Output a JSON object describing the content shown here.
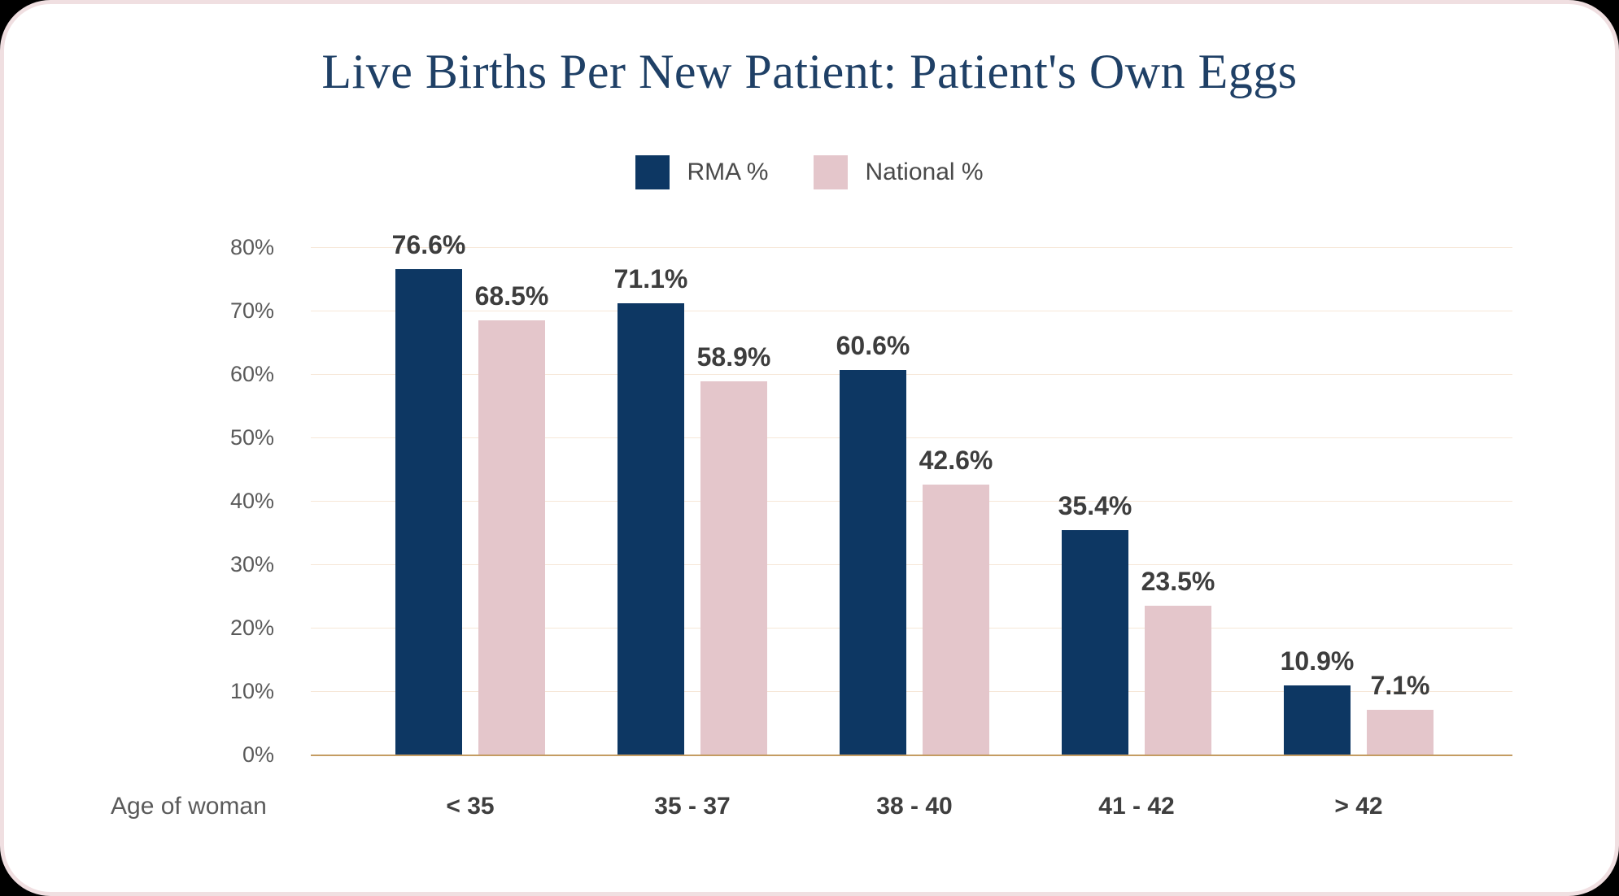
{
  "title": "Live Births Per New Patient: Patient's Own Eggs",
  "x_axis_label": "Age of woman",
  "legend": [
    {
      "label": "RMA %",
      "color": "#0d3763"
    },
    {
      "label": "National %",
      "color": "#e4c6cb"
    }
  ],
  "chart_data": {
    "type": "bar",
    "title": "Live Births Per New Patient: Patient's Own Eggs",
    "categories": [
      "< 35",
      "35 - 37",
      "38 - 40",
      "41 - 42",
      "> 42"
    ],
    "series": [
      {
        "name": "RMA %",
        "color": "#0d3763",
        "values": [
          76.6,
          71.1,
          60.6,
          35.4,
          10.9
        ]
      },
      {
        "name": "National %",
        "color": "#e4c6cb",
        "values": [
          68.5,
          58.9,
          42.6,
          23.5,
          7.1
        ]
      }
    ],
    "value_labels": [
      [
        "76.6%",
        "71.1%",
        "60.6%",
        "35.4%",
        "10.9%"
      ],
      [
        "68.5%",
        "58.9%",
        "42.6%",
        "23.5%",
        "7.1%"
      ]
    ],
    "xlabel": "Age of woman",
    "ylabel": "",
    "ylim": [
      0,
      80
    ],
    "yticks": [
      "0%",
      "10%",
      "20%",
      "30%",
      "40%",
      "50%",
      "60%",
      "70%",
      "80%"
    ],
    "grid": true,
    "legend_position": "top-center",
    "colors": {
      "gridline": "#f6e7d7",
      "axis_line": "#c49c62",
      "value_label": "#3d3d3d",
      "tick_label": "#5a5a5a",
      "category_label": "#3f3f3f",
      "legend_text": "#4a4a4a",
      "title": "#1f4066",
      "card_border": "#f0dfe1",
      "background": "#ffffff"
    }
  }
}
